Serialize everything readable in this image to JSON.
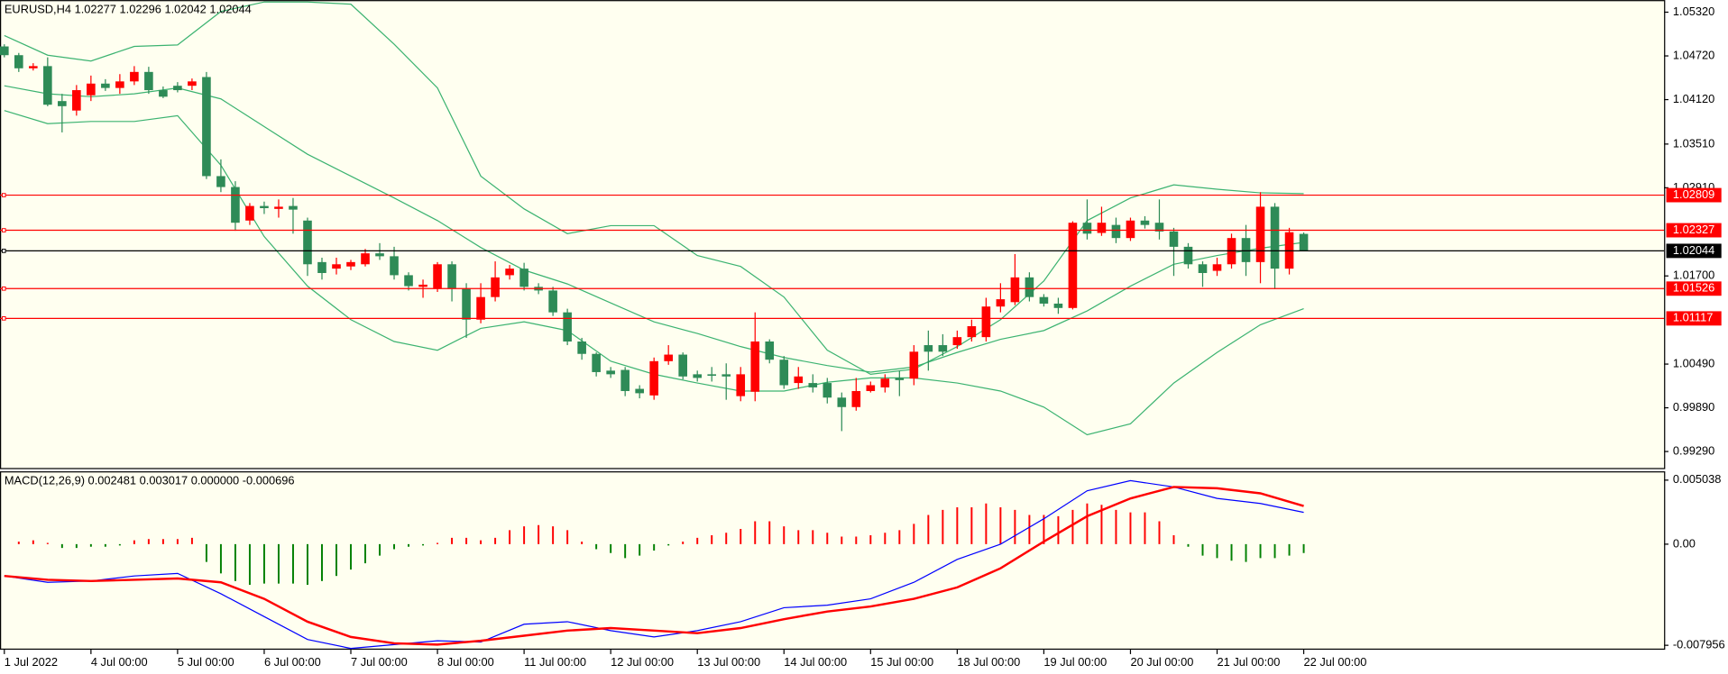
{
  "chart_data": [
    {
      "type": "candlestick",
      "title": "EURUSD,H4  1.02277 1.02296 1.02042 1.02044",
      "up_color": "#ff0000",
      "down_color": "#2e8b57",
      "open": [
        1.0485,
        1.0473,
        1.0455,
        1.0458,
        1.041,
        1.0397,
        1.0418,
        1.0434,
        1.0428,
        1.0437,
        1.045,
        1.0425,
        1.0431,
        1.0431,
        1.0443,
        1.0307,
        1.0292,
        1.0246,
        1.0266,
        1.0262,
        1.0266,
        1.0246,
        1.0189,
        1.018,
        1.0183,
        1.0186,
        1.0201,
        1.0197,
        1.0171,
        1.0155,
        1.0153,
        1.0186,
        1.0153,
        1.011,
        1.0141,
        1.0171,
        1.018,
        1.0155,
        1.015,
        1.012,
        1.008,
        1.0063,
        1.004,
        1.0041,
        1.0015,
        1.0006,
        1.0053,
        1.0062,
        1.0035,
        1.0035,
        1.0035,
        1.0005,
        1.0011,
        1.008,
        1.0055,
        1.0023,
        1.0023,
        1.0023,
        1.0003,
        0.999,
        1.0012,
        1.0017,
        1.003,
        1.0029,
        1.0075,
        1.0075,
        1.0075,
        1.0086,
        1.0086,
        1.0128,
        1.0134,
        1.0168,
        1.0141,
        1.0132,
        1.0126,
        1.0243,
        1.0229,
        1.024,
        1.0222,
        1.0246,
        1.0243,
        1.0231,
        1.021,
        1.0186,
        1.0177,
        1.0186,
        1.0222,
        1.0189,
        1.0265,
        1.018,
        1.02277
      ],
      "high": [
        1.0488,
        1.0476,
        1.0462,
        1.047,
        1.042,
        1.0432,
        1.0445,
        1.044,
        1.0447,
        1.0458,
        1.0457,
        1.043,
        1.0436,
        1.0441,
        1.045,
        1.033,
        1.03,
        1.027,
        1.0272,
        1.0275,
        1.0277,
        1.025,
        1.0195,
        1.0195,
        1.0192,
        1.0207,
        1.0215,
        1.021,
        1.0175,
        1.0165,
        1.0189,
        1.019,
        1.016,
        1.016,
        1.019,
        1.0185,
        1.0188,
        1.016,
        1.0155,
        1.0125,
        1.0085,
        1.0065,
        1.0045,
        1.0045,
        1.002,
        1.0058,
        1.0075,
        1.0065,
        1.004,
        1.0045,
        1.005,
        1.0045,
        1.012,
        1.0083,
        1.006,
        1.0045,
        1.0035,
        1.003,
        1.001,
        1.003,
        1.0025,
        1.0035,
        1.004,
        1.0075,
        1.0095,
        1.009,
        1.0095,
        1.011,
        1.014,
        1.016,
        1.02,
        1.0175,
        1.0145,
        1.014,
        1.0245,
        1.0275,
        1.0265,
        1.025,
        1.025,
        1.0252,
        1.0275,
        1.0236,
        1.0215,
        1.019,
        1.0195,
        1.0228,
        1.024,
        1.0285,
        1.027,
        1.0236,
        1.02296
      ],
      "low": [
        1.047,
        1.045,
        1.0452,
        1.0403,
        1.0367,
        1.039,
        1.041,
        1.0424,
        1.042,
        1.0432,
        1.042,
        1.0414,
        1.0422,
        1.0425,
        1.0303,
        1.0285,
        1.0232,
        1.024,
        1.0255,
        1.025,
        1.0228,
        1.017,
        1.0165,
        1.0172,
        1.0178,
        1.0183,
        1.0192,
        1.0165,
        1.015,
        1.014,
        1.0148,
        1.0135,
        1.0085,
        1.0105,
        1.0135,
        1.0165,
        1.015,
        1.0145,
        1.0115,
        1.0075,
        1.0055,
        1.0032,
        1.003,
        1.0005,
        1.0002,
        1.0,
        1.0048,
        1.0028,
        1.0025,
        1.0025,
        1.0,
        0.9998,
        0.9998,
        1.005,
        1.0015,
        1.0015,
        1.001,
        0.9995,
        0.9957,
        0.9985,
        1.001,
        1.001,
        1.0005,
        1.002,
        1.004,
        1.006,
        1.007,
        1.008,
        1.008,
        1.012,
        1.013,
        1.0135,
        1.0128,
        1.0118,
        1.0124,
        1.022,
        1.0225,
        1.0215,
        1.0218,
        1.0235,
        1.022,
        1.017,
        1.018,
        1.0155,
        1.017,
        1.018,
        1.017,
        1.016,
        1.0152,
        1.0172,
        1.02042
      ],
      "close": [
        1.0473,
        1.0455,
        1.0458,
        1.0405,
        1.0403,
        1.0425,
        1.0434,
        1.0428,
        1.0437,
        1.045,
        1.0425,
        1.0416,
        1.0425,
        1.0437,
        1.0307,
        1.0292,
        1.0243,
        1.0266,
        1.0263,
        1.0265,
        1.0261,
        1.0186,
        1.0174,
        1.0186,
        1.0189,
        1.0201,
        1.0197,
        1.0171,
        1.0156,
        1.0158,
        1.0186,
        1.0153,
        1.011,
        1.0141,
        1.0168,
        1.018,
        1.0155,
        1.015,
        1.012,
        1.008,
        1.0063,
        1.0038,
        1.0035,
        1.0012,
        1.0009,
        1.0053,
        1.0062,
        1.0032,
        1.003,
        1.0033,
        1.0032,
        1.0035,
        1.008,
        1.0055,
        1.002,
        1.0032,
        1.0017,
        1.0003,
        0.999,
        1.0012,
        1.002,
        1.0029,
        1.0027,
        1.0066,
        1.0066,
        1.0066,
        1.0086,
        1.0101,
        1.0128,
        1.0138,
        1.0168,
        1.0141,
        1.0132,
        1.0126,
        1.0243,
        1.0228,
        1.0243,
        1.0222,
        1.0246,
        1.024,
        1.0231,
        1.021,
        1.0186,
        1.0174,
        1.0186,
        1.0222,
        1.0189,
        1.0265,
        1.018,
        1.023,
        1.02044
      ],
      "bands": [
        {
          "color": "#3cb371",
          "x": [
            0,
            3,
            6,
            9,
            12,
            15,
            18,
            21,
            24,
            27,
            30,
            33,
            36,
            39,
            42,
            45,
            48,
            51,
            54,
            57,
            60,
            63,
            66,
            69,
            72,
            75,
            78,
            81,
            84,
            87,
            90
          ],
          "values": [
            1.05,
            1.0473,
            1.0465,
            1.0485,
            1.0487,
            1.0533,
            1.0546,
            1.0546,
            1.0543,
            1.0488,
            1.0428,
            1.0307,
            1.0262,
            1.0228,
            1.0239,
            1.0239,
            1.0198,
            1.0183,
            1.0141,
            1.0068,
            1.0035,
            1.0042,
            1.0073,
            1.011,
            1.0163,
            1.0246,
            1.0277,
            1.0295,
            1.0289,
            1.0284,
            1.0283
          ]
        },
        {
          "color": "#3cb371",
          "x": [
            0,
            3,
            6,
            9,
            12,
            15,
            18,
            21,
            24,
            27,
            30,
            33,
            36,
            39,
            42,
            45,
            48,
            51,
            54,
            57,
            60,
            63,
            66,
            69,
            72,
            75,
            78,
            81,
            84,
            87,
            90
          ],
          "values": [
            1.0431,
            1.042,
            1.0416,
            1.042,
            1.0428,
            1.0413,
            1.0375,
            1.0337,
            1.0307,
            1.0277,
            1.0246,
            1.0209,
            1.0178,
            1.0159,
            1.0133,
            1.0107,
            1.0091,
            1.0073,
            1.0058,
            1.0047,
            1.0038,
            1.0045,
            1.0065,
            1.0083,
            1.0095,
            1.0122,
            1.0156,
            1.0186,
            1.0198,
            1.0208,
            1.0216
          ]
        },
        {
          "color": "#3cb371",
          "x": [
            0,
            3,
            6,
            9,
            12,
            15,
            18,
            21,
            24,
            27,
            30,
            33,
            36,
            39,
            42,
            45,
            48,
            51,
            54,
            57,
            60,
            63,
            66,
            69,
            72,
            75,
            78,
            81,
            84,
            87,
            90
          ],
          "values": [
            1.0397,
            1.0379,
            1.0382,
            1.0382,
            1.039,
            1.0322,
            1.0224,
            1.0156,
            1.011,
            1.008,
            1.0068,
            1.0098,
            1.0107,
            1.0095,
            1.0053,
            1.0035,
            1.0023,
            1.0012,
            1.0012,
            1.0024,
            1.003,
            1.003,
            1.0023,
            1.0012,
            0.999,
            0.9952,
            0.9967,
            1.0023,
            1.0065,
            1.0103,
            1.0125
          ]
        }
      ],
      "levels": [
        {
          "value": 1.02809,
          "label": "1.02809",
          "color": "#ff0000"
        },
        {
          "value": 1.02327,
          "label": "1.02327",
          "color": "#ff0000"
        },
        {
          "value": 1.02044,
          "label": "1.02044",
          "color": "#000000"
        },
        {
          "value": 1.01526,
          "label": "1.01526",
          "color": "#ff0000"
        },
        {
          "value": 1.01117,
          "label": "1.01117",
          "color": "#ff0000"
        }
      ],
      "ylim": [
        0.9929,
        1.0532
      ],
      "yticks": [
        {
          "value": 1.0532,
          "label": "1.05320"
        },
        {
          "value": 1.0472,
          "label": "1.04720"
        },
        {
          "value": 1.0412,
          "label": "1.04120"
        },
        {
          "value": 1.0351,
          "label": "1.03510"
        },
        {
          "value": 1.0291,
          "label": "1.02910"
        },
        {
          "value": 1.017,
          "label": "1.01700"
        },
        {
          "value": 1.0049,
          "label": "1.00490"
        },
        {
          "value": 0.9989,
          "label": "0.99890"
        },
        {
          "value": 0.9929,
          "label": "0.99290"
        }
      ],
      "xlim": [
        -0.3,
        114.96
      ],
      "xticks": [
        {
          "value": 0,
          "label": "1 Jul 2022"
        },
        {
          "value": 6,
          "label": "4 Jul 00:00"
        },
        {
          "value": 12,
          "label": "5 Jul 00:00"
        },
        {
          "value": 18,
          "label": "6 Jul 00:00"
        },
        {
          "value": 24,
          "label": "7 Jul 00:00"
        },
        {
          "value": 30,
          "label": "8 Jul 00:00"
        },
        {
          "value": 36,
          "label": "11 Jul 00:00"
        },
        {
          "value": 42,
          "label": "12 Jul 00:00"
        },
        {
          "value": 48,
          "label": "13 Jul 00:00"
        },
        {
          "value": 54,
          "label": "14 Jul 00:00"
        },
        {
          "value": 60,
          "label": "15 Jul 00:00"
        },
        {
          "value": 66,
          "label": "18 Jul 00:00"
        },
        {
          "value": 72,
          "label": "19 Jul 00:00"
        },
        {
          "value": 78,
          "label": "20 Jul 00:00"
        },
        {
          "value": 84,
          "label": "21 Jul 00:00"
        },
        {
          "value": 90,
          "label": "22 Jul 00:00"
        }
      ]
    },
    {
      "type": "macd",
      "title": "MACD(12,26,9) 0.002481 0.003017 0.000000 -0.000696",
      "histogram": {
        "up_color": "#ff0000",
        "down_color": "#008000",
        "values": [
          0,
          0.0002,
          0.0003,
          0.0001,
          -0.0003,
          -0.0003,
          -0.0002,
          -0.0002,
          -0.0001,
          0.0003,
          0.0004,
          0.0004,
          0.0004,
          0.0005,
          -0.0014,
          -0.0023,
          -0.0029,
          -0.0032,
          -0.0031,
          -0.0031,
          -0.0031,
          -0.0032,
          -0.0029,
          -0.0025,
          -0.002,
          -0.0015,
          -0.0009,
          -0.0004,
          -0.0002,
          -0.0001,
          0.0001,
          0.0005,
          0.0005,
          0.0003,
          0.0005,
          0.0011,
          0.0014,
          0.0015,
          0.0014,
          0.0011,
          0.0002,
          -0.0004,
          -0.0007,
          -0.0011,
          -0.0009,
          -0.0005,
          -0.0001,
          0.0002,
          0.0005,
          0.0007,
          0.0009,
          0.0012,
          0.0018,
          0.0018,
          0.0014,
          0.0011,
          0.0011,
          0.0009,
          0.0006,
          0.0006,
          0.0007,
          0.0009,
          0.0011,
          0.0016,
          0.0023,
          0.0027,
          0.0029,
          0.0029,
          0.0032,
          0.0029,
          0.0027,
          0.0023,
          0.0023,
          0.0022,
          0.0027,
          0.0032,
          0.0031,
          0.0027,
          0.0025,
          0.0025,
          0.0018,
          0.0007,
          -0.0002,
          -0.0009,
          -0.0011,
          -0.0013,
          -0.0014,
          -0.0011,
          -0.0011,
          -0.0009,
          -0.0007
        ]
      },
      "series": [
        {
          "color": "#0000ff",
          "width": 1,
          "x": [
            0,
            3,
            6,
            9,
            12,
            15,
            18,
            21,
            24,
            27,
            30,
            33,
            36,
            39,
            42,
            45,
            48,
            51,
            54,
            57,
            60,
            63,
            66,
            69,
            72,
            75,
            78,
            81,
            84,
            87,
            90
          ],
          "values": [
            -0.0025,
            -0.003,
            -0.0029,
            -0.0025,
            -0.0023,
            -0.0039,
            -0.0057,
            -0.0075,
            -0.0082,
            -0.0079,
            -0.0076,
            -0.0077,
            -0.0063,
            -0.0061,
            -0.0068,
            -0.0073,
            -0.0068,
            -0.0061,
            -0.005,
            -0.0048,
            -0.0043,
            -0.003,
            -0.0012,
            0.0,
            0.002,
            0.0042,
            0.005,
            0.0045,
            0.0036,
            0.0032,
            0.0025
          ]
        },
        {
          "color": "#ff0000",
          "width": 2,
          "x": [
            0,
            3,
            6,
            9,
            12,
            15,
            18,
            21,
            24,
            27,
            30,
            33,
            36,
            39,
            42,
            45,
            48,
            51,
            54,
            57,
            60,
            63,
            66,
            69,
            72,
            75,
            78,
            81,
            84,
            87,
            90
          ],
          "values": [
            -0.0025,
            -0.0028,
            -0.0029,
            -0.0028,
            -0.0027,
            -0.003,
            -0.0043,
            -0.0061,
            -0.0073,
            -0.0078,
            -0.0079,
            -0.0076,
            -0.0072,
            -0.0068,
            -0.0066,
            -0.0068,
            -0.007,
            -0.0066,
            -0.0059,
            -0.0053,
            -0.0049,
            -0.0043,
            -0.0034,
            -0.0019,
            0.0002,
            0.0022,
            0.0036,
            0.0045,
            0.0044,
            0.004,
            0.003
          ]
        }
      ],
      "ylim": [
        -0.007956,
        0.005038
      ],
      "yticks": [
        0.005038,
        {
          "value": 0,
          "label": "0.00"
        },
        -0.007956
      ]
    }
  ]
}
